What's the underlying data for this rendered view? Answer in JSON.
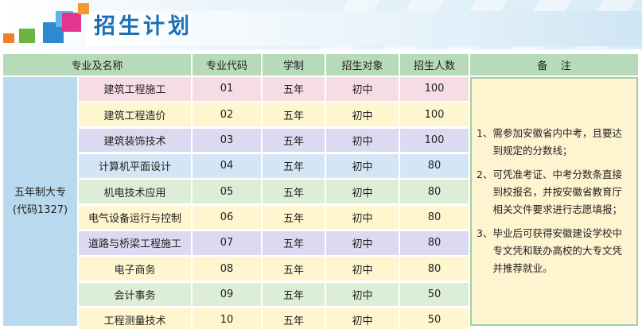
{
  "header": {
    "title": "招生计划"
  },
  "table": {
    "headers": [
      "专业及名称",
      "专业代码",
      "学制",
      "招生对象",
      "招生人数",
      "备    注"
    ],
    "group_label_line1": "五年制大专",
    "group_label_line2": "(代码1327)",
    "rows": [
      {
        "name": "建筑工程施工",
        "code": "01",
        "duration": "五年",
        "target": "初中",
        "count": "100"
      },
      {
        "name": "建筑工程造价",
        "code": "02",
        "duration": "五年",
        "target": "初中",
        "count": "100"
      },
      {
        "name": "建筑装饰技术",
        "code": "03",
        "duration": "五年",
        "target": "初中",
        "count": "100"
      },
      {
        "name": "计算机平面设计",
        "code": "04",
        "duration": "五年",
        "target": "初中",
        "count": "80"
      },
      {
        "name": "机电技术应用",
        "code": "05",
        "duration": "五年",
        "target": "初中",
        "count": "80"
      },
      {
        "name": "电气设备运行与控制",
        "code": "06",
        "duration": "五年",
        "target": "初中",
        "count": "80"
      },
      {
        "name": "道路与桥梁工程施工",
        "code": "07",
        "duration": "五年",
        "target": "初中",
        "count": "80"
      },
      {
        "name": "电子商务",
        "code": "08",
        "duration": "五年",
        "target": "初中",
        "count": "80"
      },
      {
        "name": "会计事务",
        "code": "09",
        "duration": "五年",
        "target": "初中",
        "count": "50"
      },
      {
        "name": "工程测量技术",
        "code": "10",
        "duration": "五年",
        "target": "初中",
        "count": "50"
      }
    ],
    "remarks": [
      {
        "num": "1、",
        "text": "需参加安徽省内中考，且要达到规定的分数线；"
      },
      {
        "num": "2、",
        "text": "可凭准考证、中考分数条直接到校报名，并按安徽省教育厅相关文件要求进行志愿填报；"
      },
      {
        "num": "3、",
        "text": "毕业后可获得安徽建设学校中专文凭和联办高校的大专文凭并推荐就业。"
      }
    ]
  },
  "colors": {
    "title": "#1a6fb7",
    "header_green": "#b7dbb9",
    "group_blue": "#b9d9ef",
    "remarks_bg": "#fff4d0",
    "row_pink": "#f6dde4",
    "row_yellow": "#fff6cf",
    "row_lavender": "#dcdaf0",
    "row_blue": "#d4e6f5",
    "row_green": "#ddeed8"
  }
}
